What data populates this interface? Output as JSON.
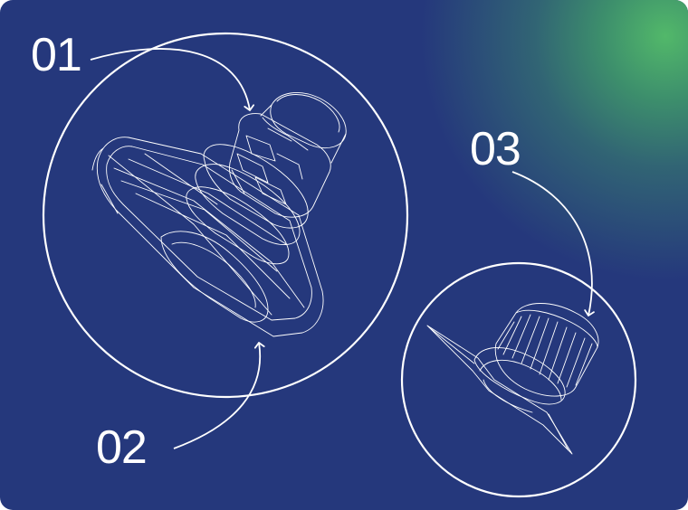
{
  "colors": {
    "background": "#25387c",
    "glow": "#52b86a",
    "line": "#ffffff"
  },
  "callouts": [
    {
      "label": "01"
    },
    {
      "label": "02"
    },
    {
      "label": "03"
    }
  ]
}
